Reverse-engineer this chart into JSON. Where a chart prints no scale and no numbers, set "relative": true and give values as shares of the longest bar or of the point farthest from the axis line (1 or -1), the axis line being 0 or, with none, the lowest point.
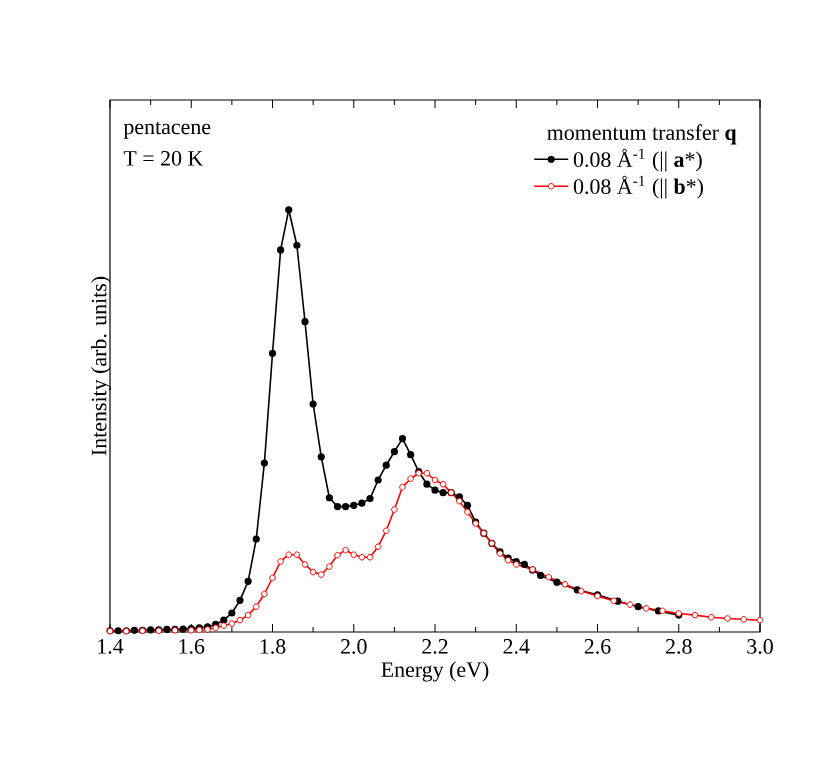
{
  "chart_data": {
    "type": "line",
    "relative": true,
    "xlabel": "Energy (eV)",
    "ylabel": "Intensity (arb. units)",
    "xlim": [
      1.4,
      3.0
    ],
    "xticks": [
      1.4,
      1.6,
      1.8,
      {
        "value": 2.0,
        "label": "2.0"
      },
      2.2,
      2.4,
      2.6,
      2.8,
      {
        "value": 3.0,
        "label": "3.0"
      }
    ],
    "legend": "top right",
    "legend_title": "momentum transfer **q**",
    "annotations": [
      "pentacene",
      "T = 20 K"
    ],
    "series": [
      {
        "name": "0.08 Å$^{-1}$ (|| **a***)",
        "color": "#000000",
        "marker": "circle",
        "x": [
          1.4,
          1.42,
          1.44,
          1.46,
          1.48,
          1.5,
          1.52,
          1.54,
          1.56,
          1.58,
          1.6,
          1.62,
          1.64,
          1.66,
          1.68,
          1.7,
          1.72,
          1.74,
          1.76,
          1.78,
          1.8,
          1.82,
          1.84,
          1.86,
          1.88,
          1.9,
          1.92,
          1.94,
          1.96,
          1.98,
          2.0,
          2.02,
          2.04,
          2.06,
          2.08,
          2.1,
          2.12,
          2.14,
          2.16,
          2.18,
          2.2,
          2.22,
          2.24,
          2.26,
          2.28,
          2.3,
          2.32,
          2.34,
          2.36,
          2.38,
          2.4,
          2.42,
          2.44,
          2.46,
          2.5,
          2.55,
          2.6,
          2.65,
          2.7,
          2.75,
          2.8
        ],
        "values": [
          0.003,
          0.003,
          0.003,
          0.004,
          0.004,
          0.005,
          0.005,
          0.006,
          0.006,
          0.007,
          0.008,
          0.01,
          0.012,
          0.018,
          0.028,
          0.045,
          0.075,
          0.12,
          0.22,
          0.4,
          0.66,
          0.905,
          1,
          0.916,
          0.735,
          0.54,
          0.415,
          0.318,
          0.297,
          0.297,
          0.3,
          0.305,
          0.316,
          0.36,
          0.395,
          0.427,
          0.458,
          0.42,
          0.38,
          0.35,
          0.336,
          0.33,
          0.33,
          0.32,
          0.3,
          0.26,
          0.234,
          0.21,
          0.19,
          0.175,
          0.167,
          0.16,
          0.147,
          0.134,
          0.118,
          0.1,
          0.088,
          0.073,
          0.06,
          0.05,
          0.04
        ]
      },
      {
        "name": "0.08 Å$^{-1}$ (|| **b***)",
        "color": "#ff0000",
        "marker": "open circle",
        "x": [
          1.4,
          1.44,
          1.48,
          1.52,
          1.56,
          1.6,
          1.62,
          1.64,
          1.66,
          1.68,
          1.7,
          1.72,
          1.74,
          1.76,
          1.78,
          1.8,
          1.82,
          1.84,
          1.86,
          1.88,
          1.9,
          1.92,
          1.94,
          1.96,
          1.98,
          2.0,
          2.02,
          2.04,
          2.06,
          2.08,
          2.1,
          2.12,
          2.14,
          2.16,
          2.18,
          2.2,
          2.22,
          2.24,
          2.26,
          2.28,
          2.3,
          2.32,
          2.34,
          2.36,
          2.38,
          2.4,
          2.44,
          2.48,
          2.52,
          2.56,
          2.6,
          2.64,
          2.68,
          2.72,
          2.76,
          2.8,
          2.84,
          2.88,
          2.92,
          2.96,
          3.0
        ],
        "values": [
          0.002,
          0.002,
          0.003,
          0.003,
          0.004,
          0.004,
          0.005,
          0.006,
          0.01,
          0.015,
          0.02,
          0.028,
          0.04,
          0.06,
          0.09,
          0.128,
          0.167,
          0.183,
          0.183,
          0.16,
          0.142,
          0.136,
          0.155,
          0.182,
          0.194,
          0.183,
          0.177,
          0.177,
          0.202,
          0.24,
          0.29,
          0.343,
          0.363,
          0.376,
          0.376,
          0.36,
          0.35,
          0.33,
          0.31,
          0.284,
          0.257,
          0.234,
          0.21,
          0.186,
          0.17,
          0.16,
          0.148,
          0.13,
          0.113,
          0.097,
          0.085,
          0.074,
          0.065,
          0.056,
          0.05,
          0.044,
          0.04,
          0.035,
          0.032,
          0.03,
          0.028
        ]
      }
    ]
  }
}
